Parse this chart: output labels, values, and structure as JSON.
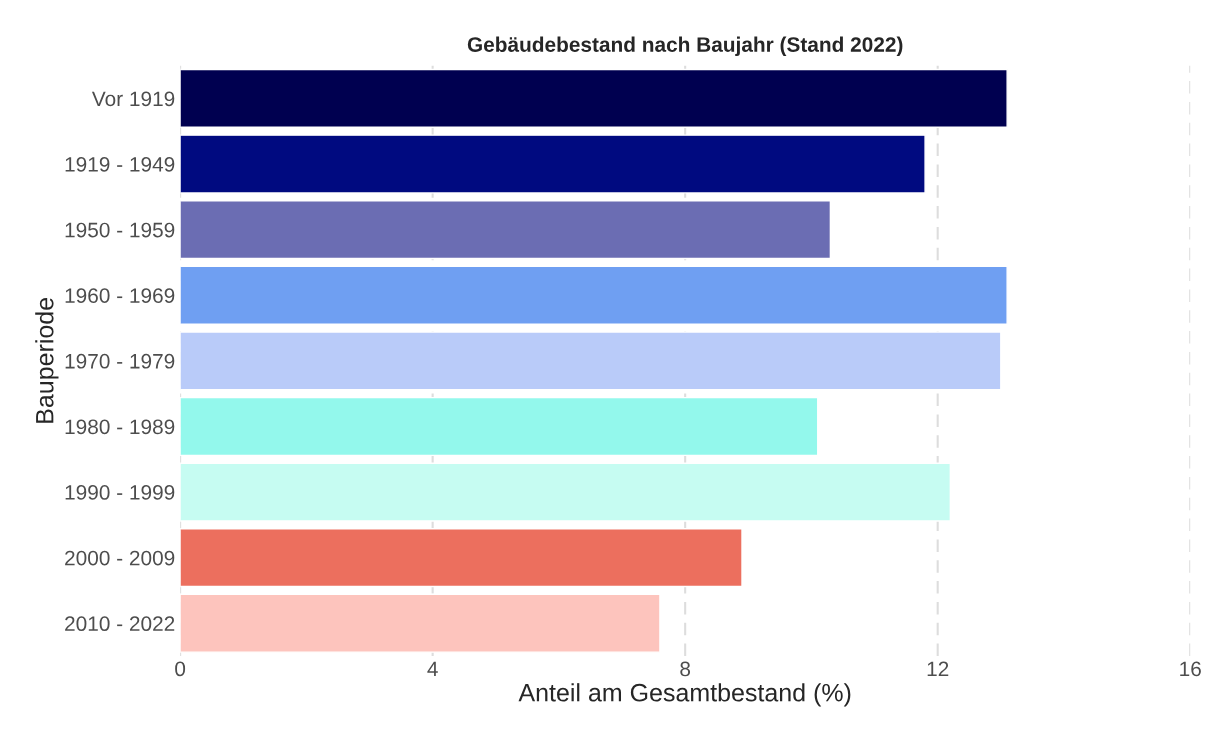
{
  "chart_data": {
    "type": "bar",
    "orientation": "horizontal",
    "title": "Gebäudebestand nach Baujahr (Stand 2022)",
    "xlabel": "Anteil am Gesamtbestand (%)",
    "ylabel": "Bauperiode",
    "categories": [
      "Vor 1919",
      "1919 - 1949",
      "1950 - 1959",
      "1960 - 1969",
      "1970 - 1979",
      "1980 - 1989",
      "1990 - 1999",
      "2000 - 2009",
      "2010 - 2022"
    ],
    "values": [
      13.1,
      11.8,
      10.3,
      13.1,
      13.0,
      10.1,
      12.2,
      8.9,
      7.6
    ],
    "colors": [
      "#000050",
      "#000a80",
      "#6b6db3",
      "#6f9ff2",
      "#b9cbf9",
      "#93f8ec",
      "#c6fcf2",
      "#ec6f5e",
      "#fdc4bd"
    ],
    "xlim": [
      0,
      16
    ],
    "xticks": [
      0,
      4,
      8,
      12,
      16
    ],
    "grid": "x"
  }
}
